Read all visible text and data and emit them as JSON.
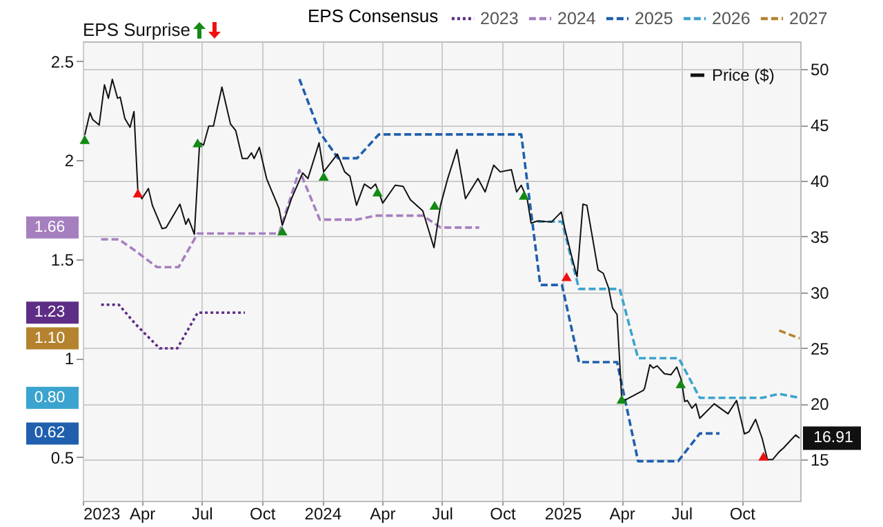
{
  "chart_data": {
    "type": "line",
    "legend_title": "EPS Consensus",
    "legend": "top",
    "grid": true,
    "annotations": [
      "EPS Surprise",
      "1.66",
      "1.23",
      "1.10",
      "0.80",
      "0.62"
    ],
    "xlim": [
      "2023-01-01",
      "2025-12-29"
    ],
    "xticks": [
      {
        "value": "2023-01-01",
        "label": "2023"
      },
      {
        "value": "2023-04-01",
        "label": "Apr"
      },
      {
        "value": "2023-07-01",
        "label": "Jul"
      },
      {
        "value": "2023-10-01",
        "label": "Oct"
      },
      {
        "value": "2024-01-01",
        "label": "2024"
      },
      {
        "value": "2024-04-01",
        "label": "Apr"
      },
      {
        "value": "2024-07-01",
        "label": "Jul"
      },
      {
        "value": "2024-10-01",
        "label": "Oct"
      },
      {
        "value": "2025-01-01",
        "label": "2025"
      },
      {
        "value": "2025-04-01",
        "label": "Apr"
      },
      {
        "value": "2025-07-01",
        "label": "Jul"
      },
      {
        "value": "2025-10-01",
        "label": "Oct"
      }
    ],
    "ylim": [
      0.28,
      2.6
    ],
    "yticks": [
      0.5,
      1,
      1.5,
      2,
      2.5
    ],
    "y2lim": [
      11.3,
      52.5
    ],
    "y2ticks": [
      15,
      20,
      25,
      30,
      35,
      40,
      45,
      50
    ],
    "series": [
      {
        "name": "2023",
        "color": "#5e2d85",
        "line_style": "dotted",
        "x": [
          "2023-01-29",
          "2023-02-25",
          "2023-03-23",
          "2023-04-28",
          "2023-05-25",
          "2023-06-25",
          "2023-09-05"
        ],
        "values": [
          1.27,
          1.27,
          1.17,
          1.05,
          1.05,
          1.23,
          1.23
        ]
      },
      {
        "name": "2024",
        "color": "#a67fbf",
        "line_style": "dashed",
        "x": [
          "2023-01-29",
          "2023-02-25",
          "2023-03-23",
          "2023-04-24",
          "2023-05-27",
          "2023-06-25",
          "2023-10-27",
          "2023-11-27",
          "2023-12-28",
          "2024-02-23",
          "2024-03-22",
          "2024-06-02",
          "2024-06-29",
          "2024-08-27"
        ],
        "values": [
          1.6,
          1.6,
          1.54,
          1.46,
          1.46,
          1.63,
          1.63,
          1.95,
          1.7,
          1.7,
          1.72,
          1.72,
          1.66,
          1.66
        ]
      },
      {
        "name": "2025",
        "color": "#1f5fae",
        "line_style": "dashed",
        "x": [
          "2023-11-27",
          "2023-12-28",
          "2024-01-25",
          "2024-02-23",
          "2024-03-27",
          "2024-10-30",
          "2024-11-28",
          "2024-12-31",
          "2025-01-26",
          "2025-03-25",
          "2025-04-26",
          "2025-06-26",
          "2025-07-29",
          "2025-08-28"
        ],
        "values": [
          2.41,
          2.14,
          2.01,
          2.01,
          2.13,
          2.13,
          1.37,
          1.37,
          0.98,
          0.98,
          0.48,
          0.48,
          0.62,
          0.62
        ]
      },
      {
        "name": "2026",
        "color": "#3ba3cf",
        "line_style": "dashed",
        "x": [
          "2024-11-24",
          "2024-12-31",
          "2025-01-26",
          "2025-03-29",
          "2025-04-26",
          "2025-06-27",
          "2025-07-29",
          "2025-11-01",
          "2025-11-27",
          "2025-12-28"
        ],
        "values": [
          1.69,
          1.69,
          1.35,
          1.35,
          1.0,
          1.0,
          0.8,
          0.8,
          0.82,
          0.8
        ]
      },
      {
        "name": "2027",
        "color": "#b5832f",
        "line_style": "dashed",
        "x": [
          "2025-11-27",
          "2025-12-28"
        ],
        "values": [
          1.14,
          1.1
        ]
      },
      {
        "name": "Price ($)",
        "color": "#111111",
        "axis": "y2",
        "line_style": "solid",
        "x": [
          "2023-01-04",
          "2023-01-12",
          "2023-01-16",
          "2023-01-26",
          "2023-02-03",
          "2023-02-09",
          "2023-02-15",
          "2023-02-23",
          "2023-02-27",
          "2023-03-06",
          "2023-03-14",
          "2023-03-20",
          "2023-03-26",
          "2023-04-01",
          "2023-04-11",
          "2023-04-17",
          "2023-05-02",
          "2023-05-08",
          "2023-05-29",
          "2023-06-07",
          "2023-06-11",
          "2023-06-20",
          "2023-06-28",
          "2023-07-04",
          "2023-07-12",
          "2023-07-19",
          "2023-08-01",
          "2023-08-14",
          "2023-08-22",
          "2023-09-01",
          "2023-09-09",
          "2023-09-15",
          "2023-09-19",
          "2023-09-27",
          "2023-10-08",
          "2023-10-27",
          "2023-11-01",
          "2023-11-15",
          "2023-12-02",
          "2023-12-10",
          "2023-12-27",
          "2024-01-03",
          "2024-01-24",
          "2024-02-04",
          "2024-02-12",
          "2024-02-22",
          "2024-03-05",
          "2024-03-15",
          "2024-03-22",
          "2024-04-02",
          "2024-04-21",
          "2024-05-03",
          "2024-05-14",
          "2024-06-02",
          "2024-06-19",
          "2024-06-29",
          "2024-07-10",
          "2024-07-24",
          "2024-08-06",
          "2024-08-25",
          "2024-09-05",
          "2024-09-18",
          "2024-09-28",
          "2024-10-15",
          "2024-10-23",
          "2024-10-30",
          "2024-11-08",
          "2024-11-14",
          "2024-11-24",
          "2024-12-15",
          "2024-12-30",
          "2025-01-04",
          "2025-01-14",
          "2025-01-23",
          "2025-02-01",
          "2025-02-07",
          "2025-02-24",
          "2025-03-04",
          "2025-03-12",
          "2025-03-18",
          "2025-03-25",
          "2025-04-01",
          "2025-04-05",
          "2025-05-04",
          "2025-05-06",
          "2025-05-14",
          "2025-05-19",
          "2025-05-25",
          "2025-06-05",
          "2025-06-15",
          "2025-06-24",
          "2025-07-01",
          "2025-07-06",
          "2025-07-10",
          "2025-07-17",
          "2025-07-23",
          "2025-07-29",
          "2025-08-20",
          "2025-09-10",
          "2025-09-23",
          "2025-10-05",
          "2025-10-12",
          "2025-10-22",
          "2025-11-01",
          "2025-11-09",
          "2025-11-17",
          "2025-11-27",
          "2025-12-03",
          "2025-12-14",
          "2025-12-22",
          "2025-12-28"
        ],
        "values": [
          44.1,
          46.1,
          45.5,
          45.0,
          48.6,
          47.4,
          49.1,
          47.4,
          47.5,
          45.6,
          44.8,
          46.2,
          39.0,
          38.4,
          39.3,
          37.8,
          35.7,
          35.8,
          37.9,
          36.1,
          36.6,
          35.2,
          43.4,
          43.2,
          44.9,
          44.9,
          48.4,
          45.1,
          44.5,
          42.0,
          42.0,
          42.5,
          42.0,
          43.0,
          40.2,
          37.5,
          36.0,
          38.4,
          40.7,
          40.2,
          43.4,
          40.8,
          42.4,
          40.8,
          40.4,
          37.8,
          39.7,
          39.3,
          39.7,
          38.0,
          39.6,
          39.5,
          38.3,
          37.3,
          34.0,
          37.8,
          40.2,
          42.8,
          38.4,
          40.2,
          39.0,
          41.4,
          40.8,
          41.0,
          39.0,
          39.6,
          38.4,
          36.2,
          36.4,
          36.3,
          37.2,
          35.8,
          33.4,
          31.4,
          37.9,
          37.8,
          32.0,
          31.7,
          30.4,
          28.6,
          28.0,
          20.5,
          20.3,
          21.2,
          21.4,
          23.5,
          23.2,
          23.4,
          22.7,
          22.6,
          23.3,
          22.1,
          20.2,
          20.3,
          19.6,
          20.0,
          18.7,
          20.0,
          19.1,
          20.3,
          17.3,
          17.5,
          18.6,
          16.9,
          15.0,
          15.0,
          15.7,
          16.0,
          16.7,
          17.2,
          16.91
        ],
        "value_labels": [
          null,
          null,
          null,
          null,
          null,
          null,
          null,
          null,
          null,
          null,
          null,
          null,
          null,
          null,
          null,
          null,
          null,
          null,
          null,
          null,
          null,
          null,
          null,
          null,
          null,
          null,
          null,
          null,
          null,
          null,
          null,
          null,
          null,
          null,
          null,
          null,
          null,
          null,
          null,
          null,
          null,
          null,
          null,
          null,
          null,
          null,
          null,
          null,
          null,
          null,
          null,
          null,
          null,
          null,
          null,
          null,
          null,
          null,
          null,
          null,
          null,
          null,
          null,
          null,
          null,
          null,
          null,
          null,
          null,
          null,
          null,
          null,
          null,
          null,
          null,
          null,
          null,
          null,
          null,
          null,
          null,
          null,
          null,
          null,
          null,
          null,
          null,
          null,
          null,
          null,
          null,
          null,
          null,
          null,
          null,
          null,
          null,
          null,
          null,
          null,
          null,
          null,
          null,
          null,
          null,
          null,
          null,
          null,
          null,
          null,
          "16.91"
        ]
      },
      {
        "type": "scatter",
        "color": "#138a13",
        "axis": "y2",
        "marker": "triangle",
        "x": [
          "2023-01-04",
          "2023-06-25",
          "2023-11-01",
          "2024-01-03",
          "2024-03-25",
          "2024-06-20",
          "2024-11-03",
          "2025-04-01",
          "2025-06-30"
        ],
        "values": [
          43.7,
          43.4,
          35.5,
          40.4,
          39.0,
          37.8,
          38.7,
          20.4,
          21.8
        ]
      },
      {
        "type": "scatter",
        "color": "#ee1111",
        "axis": "y2",
        "marker": "triangle",
        "x": [
          "2023-03-26",
          "2025-01-07",
          "2025-11-03"
        ],
        "values": [
          38.9,
          31.4,
          15.3
        ]
      }
    ]
  }
}
